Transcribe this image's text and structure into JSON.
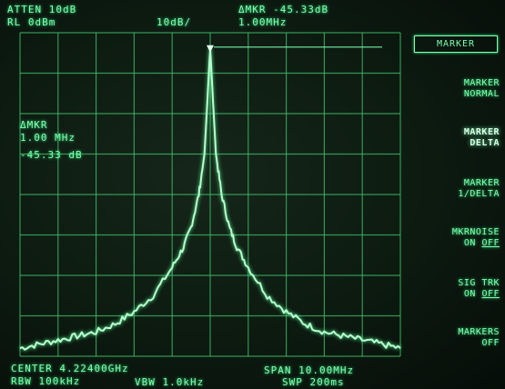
{
  "header": {
    "atten": "ATTEN 10dB",
    "delta_marker_readout": "ΔMKR -45.33dB",
    "ref_level": "RL 0dBm",
    "scale": "10dB/",
    "marker_freq": "1.00MHz"
  },
  "marker_annotation": {
    "label": "ΔMKR",
    "freq": "1.00 MHz",
    "level": "-45.33 dB"
  },
  "footer": {
    "center": "CENTER 4.22400GHz",
    "span": "SPAN 10.00MHz",
    "rbw": "RBW 100kHz",
    "vbw": "VBW 1.0kHz",
    "sweep": "SWP 200ms"
  },
  "softkeys": {
    "title": "MARKER",
    "items": [
      {
        "line1": "MARKER",
        "line2": "NORMAL",
        "active": false
      },
      {
        "line1": "MARKER",
        "line2": "DELTA",
        "active": true
      },
      {
        "line1": "MARKER",
        "line2": "1/DELTA",
        "active": false
      },
      {
        "line1": "MKRNOISE",
        "line2": "ON",
        "line2b": "OFF",
        "active": false
      },
      {
        "line1": "SIG TRK",
        "line2": "ON",
        "line2b": "OFF",
        "active": false
      },
      {
        "line1": "MARKERS",
        "line2": "OFF",
        "active": false
      }
    ]
  },
  "colors": {
    "phosphor": "#7dffb0",
    "grid": "#3fbf6a",
    "background": "#0c1a10"
  },
  "chart_data": {
    "type": "line",
    "center_freq_ghz": 4.224,
    "span_mhz": 10,
    "ref_level_dbm": 0,
    "db_per_div": 10,
    "divisions": {
      "x": 10,
      "y": 8
    },
    "series": [
      {
        "x_mhz_offset": [
          -5,
          -4.5,
          -4,
          -3.5,
          -3,
          -2.5,
          -2,
          -1.5,
          -1,
          -0.7,
          -0.5,
          -0.3,
          -0.15,
          0,
          0.15,
          0.3,
          0.5,
          0.7,
          1,
          1.5,
          2,
          2.5,
          3,
          3.5,
          4,
          4.5,
          5
        ],
        "y_dbm": [
          -78,
          -77,
          -76,
          -75,
          -74,
          -72,
          -69,
          -65,
          -58,
          -53,
          -48,
          -40,
          -30,
          -4,
          -30,
          -40,
          -48,
          -53,
          -58,
          -65,
          -69,
          -72,
          -74,
          -75,
          -76,
          -77,
          -78
        ]
      }
    ]
  }
}
